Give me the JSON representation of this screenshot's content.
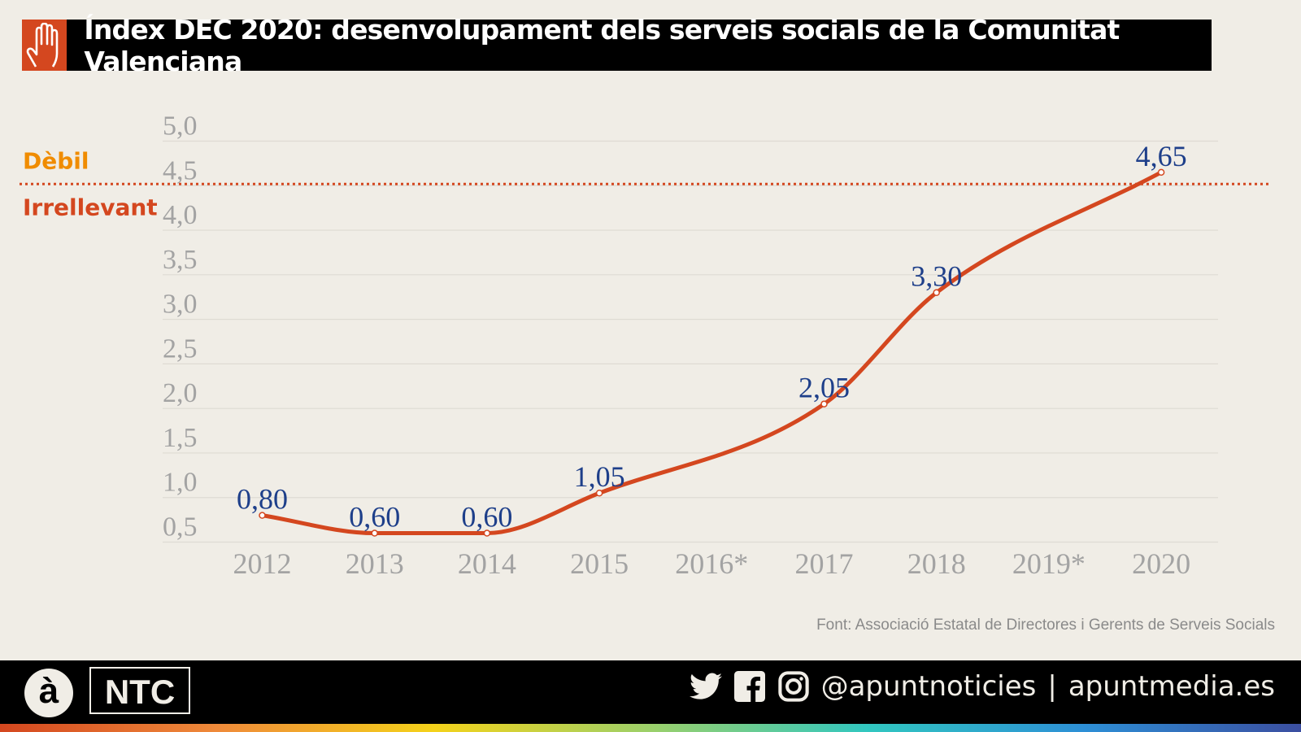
{
  "header": {
    "title": "Índex DEC 2020: desenvolupament dels serveis socials de la Comunitat Valenciana",
    "icon": "raised-hand-icon"
  },
  "chart_data": {
    "type": "line",
    "title": "Índex DEC 2020: desenvolupament dels serveis socials de la Comunitat Valenciana",
    "categories": [
      "2012",
      "2013",
      "2014",
      "2015",
      "2016*",
      "2017",
      "2018",
      "2019*",
      "2020"
    ],
    "values": [
      0.8,
      0.6,
      0.6,
      1.05,
      null,
      2.05,
      3.3,
      null,
      4.65
    ],
    "data_labels": [
      "0,80",
      "0,60",
      "0,60",
      "1,05",
      "",
      "2,05",
      "3,30",
      "",
      "4,65"
    ],
    "yticks": [
      "0,5",
      "1,0",
      "1,5",
      "2,0",
      "2,5",
      "3,0",
      "3,5",
      "4,0",
      "4,5",
      "5,0"
    ],
    "ylim": [
      0.5,
      5.0
    ],
    "grid": true,
    "threshold": {
      "value": 4.5,
      "label_above": "Dèbil",
      "label_below": "Irrellevant",
      "color_above": "#f08c00",
      "color_below": "#d4471f"
    },
    "line_color": "#d4471f",
    "label_color": "#1e3f8a"
  },
  "source": "Font: Associació Estatal de Directores i Gerents de Serveis Socials",
  "footer": {
    "logo_a": "à",
    "logo_ntc": "NTC",
    "handle": "@apuntnoticies",
    "separator": "|",
    "website": "apuntmedia.es"
  }
}
